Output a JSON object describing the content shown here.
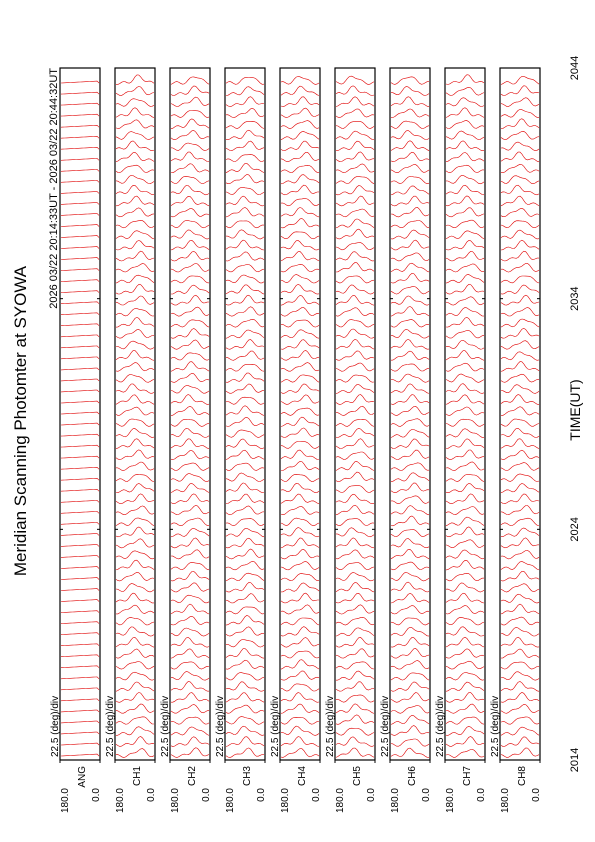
{
  "chart_data": {
    "type": "line",
    "title": "Meridian Scanning Photomter at SYOWA",
    "subtitle": "2026 03/22 20:14:33UT - 2026 03/22 20:44:32UT",
    "x_label": "TIME(UT)",
    "xlim": [
      2014,
      2044
    ],
    "xticks": [
      2014,
      2024,
      2034,
      2044
    ],
    "ylim": [
      0,
      180
    ],
    "yticks": [
      {
        "value": 0,
        "label": "0.0"
      },
      {
        "value": 180,
        "label": "180.0"
      }
    ],
    "color": "#e00000",
    "panels": [
      {
        "name": "ANG",
        "scale": "22.5 (deg)/div"
      },
      {
        "name": "CH1",
        "scale": "22.5 (deg)/div"
      },
      {
        "name": "CH2",
        "scale": "22.5 (deg)/div"
      },
      {
        "name": "CH3",
        "scale": "22.5 (deg)/div"
      },
      {
        "name": "CH4",
        "scale": "22.5 (deg)/div"
      },
      {
        "name": "CH5",
        "scale": "22.5 (deg)/div"
      },
      {
        "name": "CH6",
        "scale": "22.5 (deg)/div"
      },
      {
        "name": "CH7",
        "scale": "22.5 (deg)/div"
      },
      {
        "name": "CH8",
        "scale": "22.5 (deg)/div"
      }
    ]
  }
}
